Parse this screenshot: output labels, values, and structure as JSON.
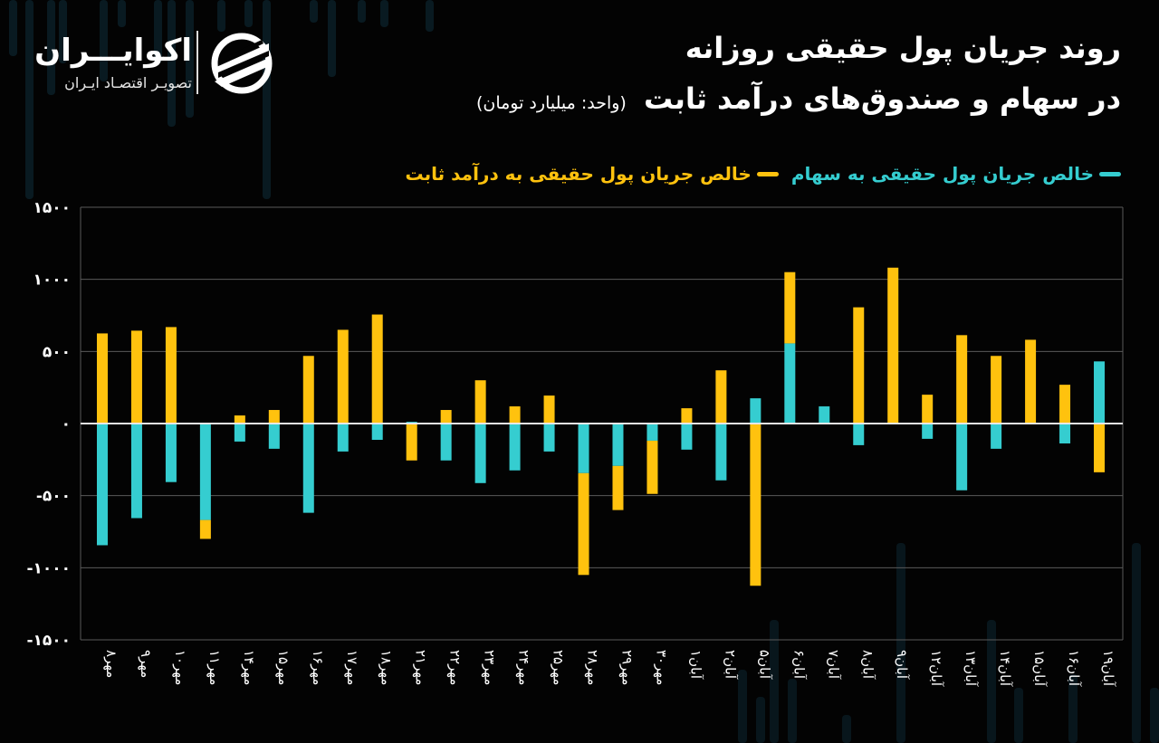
{
  "brand": {
    "name": "اکوایـــران",
    "tagline": "تصویـر اقتصـاد ایـران"
  },
  "header": {
    "title_line1": "روند جریان پول حقیقی روزانه",
    "title_line2": "در سهام و صندوق‌های درآمد ثابت",
    "unit": "(واحد: میلیارد تومان)"
  },
  "colors": {
    "background": "#030303",
    "stocks": "#35cdd0",
    "fixed_income": "#ffc20e",
    "grid": "#5a5a5a",
    "zero_line": "#e8e8e8",
    "deco": "#0d2a36"
  },
  "legend": {
    "items": [
      {
        "label": "خالص جریان پول حقیقی به سهام",
        "color": "#35cdd0"
      },
      {
        "label": "خالص جریان پول حقیقی به درآمد ثابت",
        "color": "#ffc20e"
      }
    ]
  },
  "chart_data": {
    "type": "bar",
    "stacked": true,
    "title": "روند جریان پول حقیقی روزانه در سهام و صندوق‌های درآمد ثابت",
    "ylabel": "میلیارد تومان",
    "xlabel": "",
    "ylim": [
      -1500,
      1500
    ],
    "yticks": [
      1500,
      1000,
      500,
      0,
      -500,
      -1000,
      -1500
    ],
    "ytick_labels": [
      "۱۵۰۰",
      "۱۰۰۰",
      "۵۰۰",
      "۰",
      "-۵۰۰",
      "-۱۰۰۰",
      "-۱۵۰۰"
    ],
    "grid": true,
    "legend_position": "top-right",
    "categories": [
      "مهر۸",
      "مهر۹",
      "مهر۱۰",
      "مهر۱۱",
      "مهر۱۴",
      "مهر۱۵",
      "مهر۱۶",
      "مهر۱۷",
      "مهر۱۸",
      "مهر۲۱",
      "مهر۲۲",
      "مهر۲۳",
      "مهر۲۴",
      "مهر۲۵",
      "مهر۲۸",
      "مهر۲۹",
      "مهر۳۰",
      "آبان۱",
      "آبان۲",
      "آبان۵",
      "آبان۶",
      "آبان۷",
      "آبان۸",
      "آبان۹",
      "آبان۱۲",
      "آبان۱۳",
      "آبان۱۴",
      "آبان۱۵",
      "آبان۱۶",
      "آبان۱۹"
    ],
    "series": [
      {
        "name": "خالص جریان پول حقیقی به سهام",
        "color": "#35cdd0",
        "values": [
          -844,
          -656,
          -406,
          -669,
          -125,
          -175,
          -619,
          -194,
          -113,
          12,
          -256,
          -413,
          -325,
          -194,
          -344,
          -294,
          -119,
          -181,
          -394,
          175,
          556,
          119,
          -150,
          0,
          -106,
          -463,
          -175,
          0,
          -138,
          431
        ]
      },
      {
        "name": "خالص جریان پول حقیقی به درآمد ثابت",
        "color": "#ffc20e",
        "values": [
          625,
          644,
          669,
          -131,
          56,
          94,
          469,
          650,
          756,
          -256,
          94,
          300,
          119,
          194,
          -706,
          -306,
          -369,
          106,
          369,
          -1125,
          494,
          0,
          806,
          1081,
          200,
          613,
          469,
          581,
          269,
          -338
        ]
      }
    ]
  }
}
